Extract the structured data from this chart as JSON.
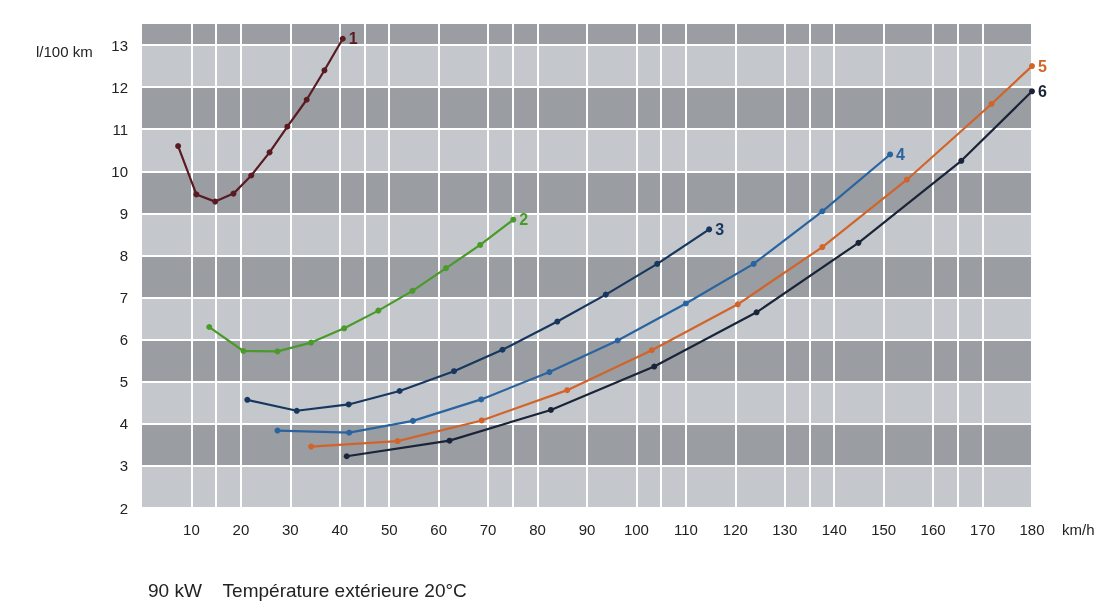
{
  "chart_data": {
    "type": "line",
    "xlabel": "km/h",
    "ylabel": "l/100 km",
    "annotations": [
      "90 kW    Température extérieure 20°C"
    ],
    "xlim": [
      0,
      180
    ],
    "xticks": [
      10,
      20,
      30,
      40,
      50,
      60,
      70,
      80,
      90,
      100,
      110,
      120,
      130,
      140,
      150,
      160,
      170,
      180
    ],
    "ylim": [
      2,
      13.5
    ],
    "yticks": [
      2,
      3,
      4,
      5,
      6,
      7,
      8,
      9,
      10,
      11,
      12,
      13
    ],
    "grid": true,
    "marker": "circle",
    "line_style": "solid",
    "legend": false,
    "series": [
      {
        "name": "1",
        "color": "#5a1a22",
        "x": [
          7.3,
          11,
          14.8,
          18.5,
          22.1,
          25.8,
          29.4,
          33.3,
          36.9,
          40.6
        ],
        "values": [
          10.6,
          9.45,
          9.28,
          9.47,
          9.9,
          10.45,
          11.06,
          11.7,
          12.4,
          13.15
        ]
      },
      {
        "name": "2",
        "color": "#4a9a2a",
        "x": [
          13.6,
          20.5,
          27.4,
          34.2,
          40.9,
          47.8,
          54.7,
          61.5,
          68.4,
          75.1
        ],
        "values": [
          6.3,
          5.73,
          5.72,
          5.93,
          6.27,
          6.69,
          7.16,
          7.7,
          8.25,
          8.85
        ]
      },
      {
        "name": "3",
        "color": "#17375e",
        "x": [
          21.3,
          31.3,
          41.8,
          52.1,
          63.1,
          72.9,
          84,
          93.8,
          104.2,
          114.7
        ],
        "values": [
          4.57,
          4.31,
          4.46,
          4.78,
          5.25,
          5.76,
          6.43,
          7.07,
          7.8,
          8.62
        ]
      },
      {
        "name": "4",
        "color": "#2a64a0",
        "x": [
          27.4,
          41.9,
          54.8,
          68.6,
          82.4,
          96.2,
          110,
          123.7,
          137.6,
          151.3
        ],
        "values": [
          3.84,
          3.79,
          4.07,
          4.58,
          5.23,
          5.98,
          6.86,
          7.8,
          9.05,
          10.4
        ]
      },
      {
        "name": "5",
        "color": "#d2642a",
        "x": [
          34.2,
          51.7,
          68.7,
          86,
          103.1,
          120.5,
          137.6,
          154.7,
          171.8,
          180
        ],
        "values": [
          3.46,
          3.59,
          4.08,
          4.8,
          5.75,
          6.84,
          8.2,
          9.8,
          11.6,
          12.5
        ]
      },
      {
        "name": "6",
        "color": "#1a2438",
        "x": [
          41.4,
          62.2,
          82.7,
          103.6,
          124.3,
          144.9,
          165.7,
          180
        ],
        "values": [
          3.23,
          3.6,
          4.33,
          5.36,
          6.65,
          8.3,
          10.25,
          11.9
        ]
      }
    ]
  }
}
